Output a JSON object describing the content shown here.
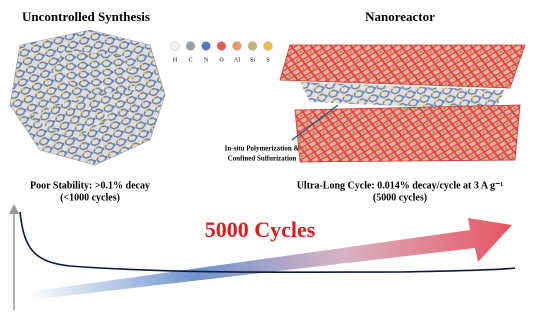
{
  "left": {
    "title": "Uncontrolled Synthesis",
    "caption": [
      "Poor Stability: >0.1% decay",
      "(<1000 cycles)"
    ]
  },
  "right": {
    "title": "Nanoreactor",
    "caption": [
      "Ultra-Long Cycle: 0.014% decay/cycle at 3 A g⁻¹",
      "(5000 cycles)"
    ],
    "annotation": [
      "In-situ Polymerization &",
      "Confined Sulfurization"
    ]
  },
  "atoms": [
    "H",
    "C",
    "N",
    "O",
    "Al",
    "Si",
    "S"
  ],
  "arrow_label": "5000 Cycles"
}
